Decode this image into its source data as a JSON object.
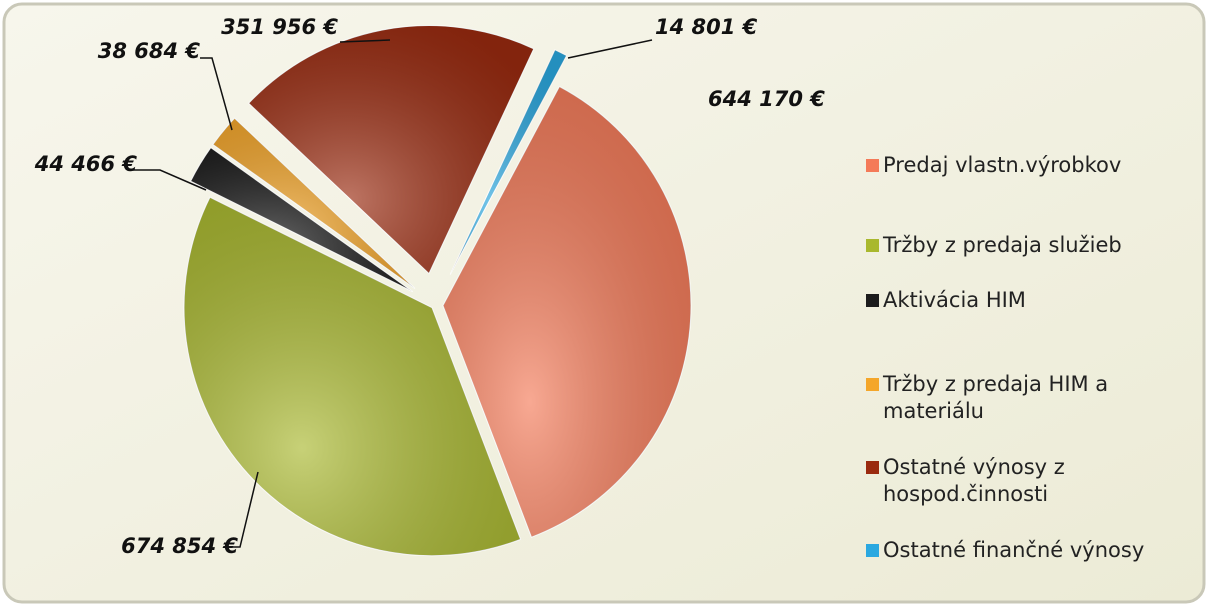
{
  "chart_data": {
    "type": "pie",
    "categories": [
      "Predaj vlastn.výrobkov",
      "Tržby z predaja služieb",
      "Aktivácia HIM",
      "Tržby z predaja HIM a materiálu",
      "Ostatné výnosy z hospod.činnosti",
      "Ostatné finančné výnosy"
    ],
    "values": [
      644170,
      674854,
      44466,
      38684,
      351956,
      14801
    ],
    "value_labels": [
      "644 170 €",
      "674 854 €",
      "44 466 €",
      "38 684 €",
      "351 956 €",
      "14 801 €"
    ],
    "colors": [
      "#f47a58",
      "#a9b82e",
      "#1c1c1c",
      "#f4a62a",
      "#9a2a0f",
      "#2aa8e0"
    ],
    "legend": "right"
  }
}
